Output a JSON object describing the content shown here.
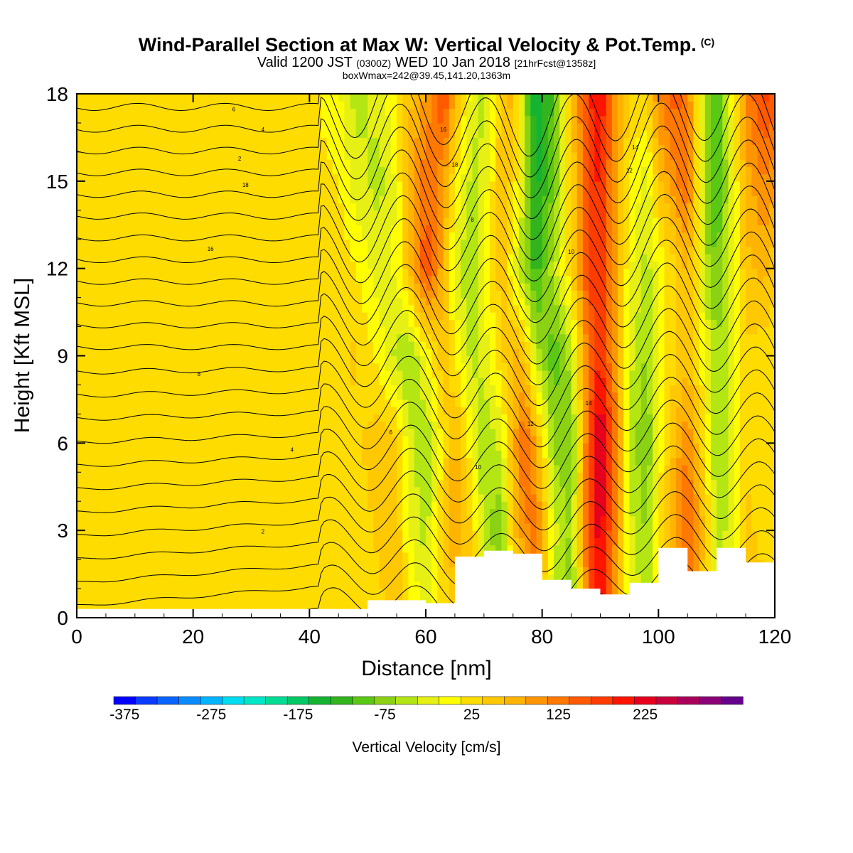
{
  "chart_data": {
    "type": "heatmap",
    "title": "Wind-Parallel Section at Max W: Vertical Velocity & Pot.Temp.",
    "title_mark": "(C)",
    "subtitle": {
      "valid_prefix": "Valid 1200 JST",
      "utc": "(0300Z)",
      "date": "WED 10 Jan 2018",
      "forecast": "[21hrFcst@1358z]"
    },
    "info_line": "boxWmax=242@39.45,141.20,1363m",
    "xlabel": "Distance [nm]",
    "ylabel": "Height [Kft MSL]",
    "xlim": [
      0,
      120
    ],
    "ylim": [
      0,
      18
    ],
    "x_ticks": [
      "0",
      "20",
      "40",
      "60",
      "80",
      "100",
      "120"
    ],
    "y_ticks": [
      "0",
      "3",
      "6",
      "9",
      "12",
      "15",
      "18"
    ],
    "colorbar": {
      "label": "Vertical Velocity [cm/s]",
      "tick_labels": [
        "-375",
        "-275",
        "-175",
        "-75",
        "25",
        "125",
        "225"
      ],
      "colors": [
        "#0000ff",
        "#0a3cff",
        "#0a64ff",
        "#0a8cff",
        "#00b4ff",
        "#00dcf0",
        "#00e6c8",
        "#00dc96",
        "#00c864",
        "#14b432",
        "#32b41e",
        "#5ac814",
        "#8cd214",
        "#b4e614",
        "#e6f014",
        "#ffff00",
        "#ffdc00",
        "#ffc800",
        "#ffb400",
        "#ff9600",
        "#ff7800",
        "#ff5a00",
        "#ff3c00",
        "#ff1400",
        "#e6001e",
        "#c8003c",
        "#aa005a",
        "#8c0078",
        "#64008c"
      ]
    },
    "isentrope_labels": [
      "2",
      "4",
      "6",
      "8",
      "10",
      "12",
      "14",
      "16",
      "18"
    ],
    "x": [
      0,
      10,
      20,
      30,
      40,
      45,
      50,
      55,
      60,
      65,
      70,
      75,
      80,
      85,
      90,
      95,
      100,
      105,
      110,
      115,
      120
    ],
    "terrain_kft": [
      0.3,
      0.3,
      0.3,
      0.3,
      0.3,
      0.3,
      0.6,
      0.6,
      0.5,
      2.1,
      2.3,
      2.2,
      1.3,
      1.0,
      0.8,
      1.2,
      2.4,
      1.6,
      2.4,
      1.9,
      1.3
    ],
    "vertical_velocity_cm_s": {
      "x": [
        0,
        10,
        20,
        30,
        40,
        45,
        48,
        52,
        55,
        57,
        60,
        63,
        65,
        68,
        70,
        73,
        75,
        77,
        79,
        82,
        85,
        88,
        90,
        93,
        95,
        98,
        100,
        103,
        105,
        108,
        110,
        113,
        115,
        118,
        120
      ],
      "z": [
        0,
        3,
        6,
        9,
        12,
        15,
        18
      ],
      "values": [
        [
          10,
          15,
          15,
          15,
          15,
          10,
          10,
          20,
          30,
          10,
          -40,
          10,
          30,
          60,
          -20,
          -80,
          0,
          40,
          80,
          -60,
          -100,
          120,
          200,
          60,
          -20,
          -60,
          0,
          60,
          110,
          20,
          -40,
          -20,
          40,
          30,
          10
        ],
        [
          10,
          15,
          15,
          15,
          15,
          10,
          10,
          30,
          40,
          -20,
          -60,
          20,
          80,
          20,
          -60,
          -100,
          40,
          90,
          120,
          -40,
          -80,
          150,
          220,
          80,
          -40,
          -80,
          0,
          80,
          140,
          40,
          -60,
          -40,
          30,
          20,
          10
        ],
        [
          15,
          15,
          10,
          10,
          10,
          15,
          20,
          40,
          30,
          -40,
          -80,
          10,
          60,
          -20,
          -80,
          -40,
          60,
          140,
          60,
          -80,
          -100,
          140,
          242,
          100,
          -60,
          -100,
          -20,
          60,
          100,
          0,
          -80,
          -40,
          20,
          20,
          10
        ],
        [
          15,
          15,
          10,
          10,
          10,
          20,
          30,
          -10,
          -60,
          -80,
          -20,
          40,
          0,
          -60,
          -40,
          20,
          60,
          40,
          -60,
          -120,
          -60,
          120,
          180,
          60,
          -40,
          -80,
          -20,
          20,
          40,
          -20,
          -80,
          -20,
          20,
          10,
          10
        ],
        [
          10,
          10,
          10,
          10,
          15,
          20,
          0,
          -40,
          -20,
          40,
          150,
          60,
          -40,
          -80,
          -20,
          40,
          -20,
          -80,
          -140,
          -60,
          20,
          160,
          170,
          60,
          -20,
          -60,
          -20,
          20,
          60,
          -60,
          -100,
          -20,
          40,
          60,
          30
        ],
        [
          10,
          10,
          10,
          10,
          10,
          0,
          -40,
          -60,
          -20,
          60,
          120,
          80,
          0,
          -60,
          -40,
          40,
          20,
          -60,
          -160,
          -100,
          20,
          160,
          180,
          60,
          0,
          -40,
          40,
          100,
          120,
          -80,
          -140,
          -20,
          60,
          100,
          80
        ],
        [
          10,
          10,
          10,
          10,
          10,
          -20,
          -60,
          -40,
          0,
          40,
          80,
          160,
          60,
          -40,
          -60,
          40,
          60,
          -80,
          -180,
          -120,
          40,
          170,
          200,
          80,
          20,
          20,
          100,
          140,
          100,
          -60,
          -120,
          0,
          100,
          160,
          140
        ]
      ]
    }
  }
}
